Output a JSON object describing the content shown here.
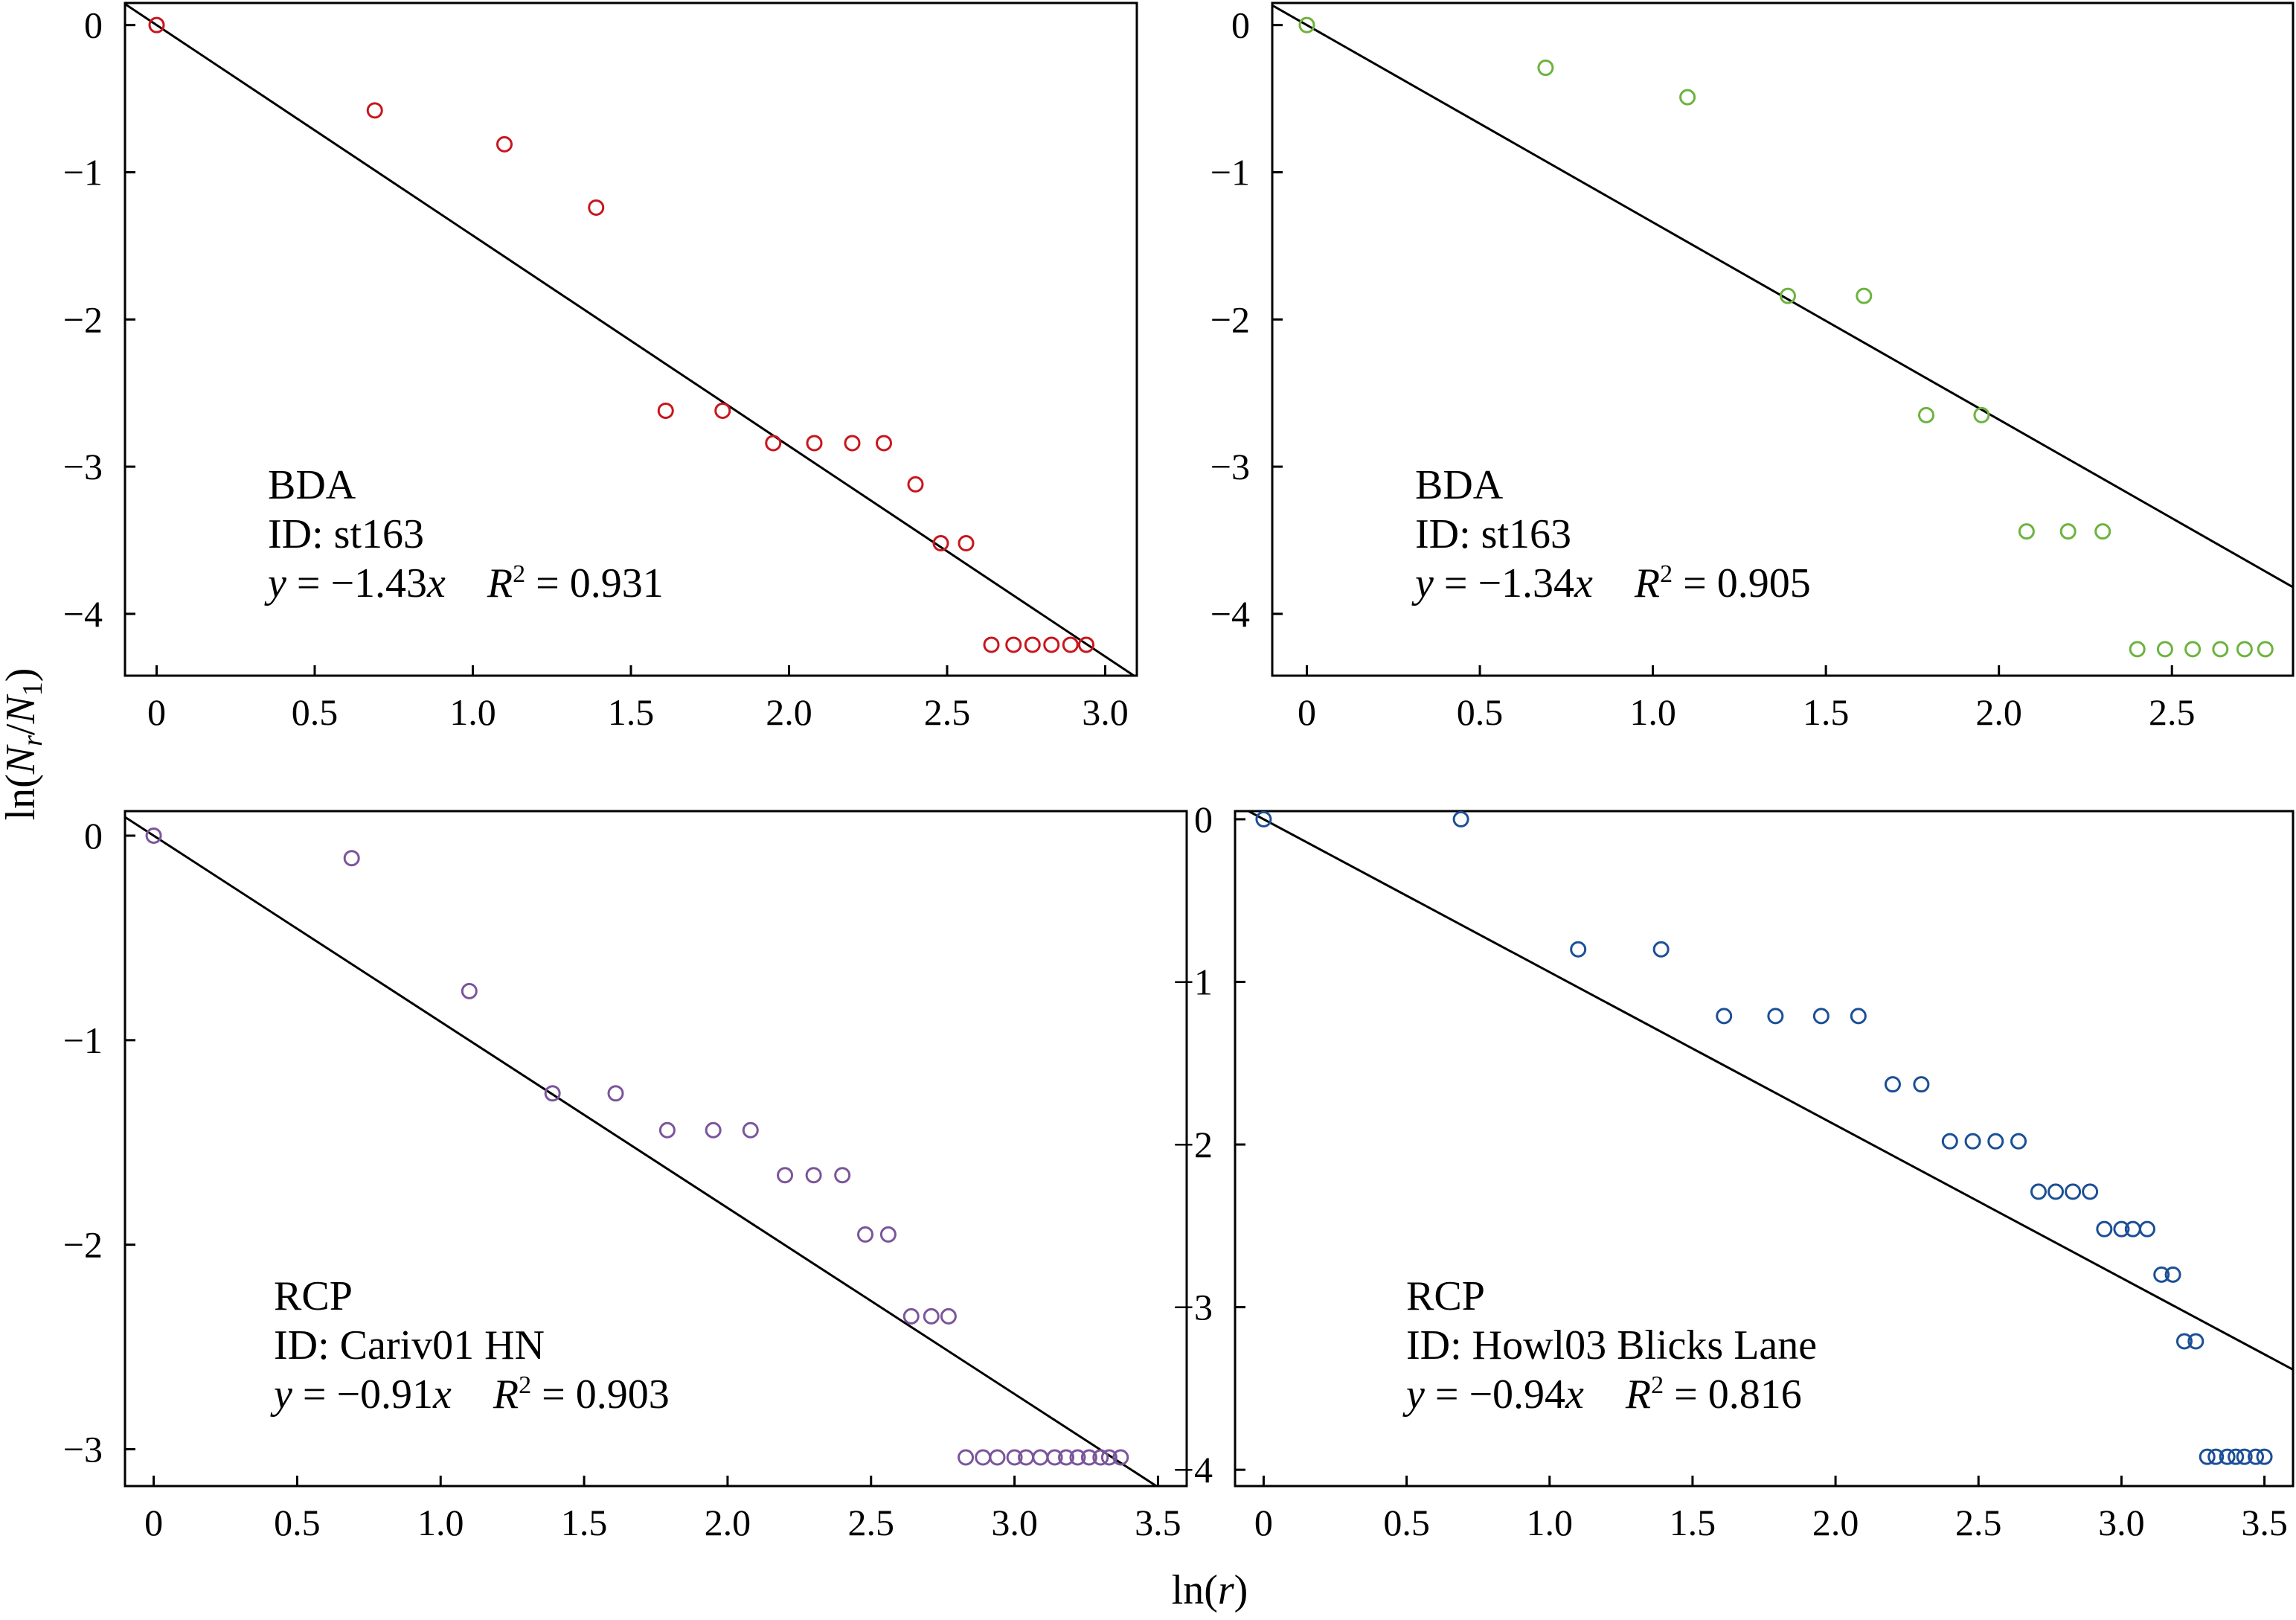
{
  "figure": {
    "xlabel": "ln(r)",
    "ylabel": "ln(N_r/N_1)"
  },
  "chart_data": [
    {
      "type": "scatter",
      "color": "#c8161d",
      "label_lines": [
        "BDA",
        "ID: st163"
      ],
      "equation": {
        "slope": "−1.43",
        "r2": "0.931"
      },
      "fit": {
        "slope": -1.43,
        "intercept": 0
      },
      "xlim": [
        -0.1,
        3.1
      ],
      "ylim": [
        -4.42,
        0.15
      ],
      "xticks": [
        0,
        0.5,
        1.0,
        1.5,
        2.0,
        2.5,
        3.0
      ],
      "xtick_labels": [
        "0",
        "0.5",
        "1.0",
        "1.5",
        "2.0",
        "2.5",
        "3.0"
      ],
      "yticks": [
        0,
        -1,
        -2,
        -3,
        -4
      ],
      "ytick_labels": [
        "0",
        "−1",
        "−2",
        "−3",
        "−4"
      ],
      "x": [
        0,
        0.69,
        1.1,
        1.39,
        1.61,
        1.79,
        1.95,
        2.08,
        2.2,
        2.3,
        2.4,
        2.48,
        2.56,
        2.64,
        2.71,
        2.77,
        2.83,
        2.89,
        2.94
      ],
      "y": [
        0,
        -0.58,
        -0.81,
        -1.24,
        -2.62,
        -2.62,
        -2.84,
        -2.84,
        -2.84,
        -2.84,
        -3.12,
        -3.52,
        -3.52,
        -4.21,
        -4.21,
        -4.21,
        -4.21,
        -4.21,
        -4.21
      ]
    },
    {
      "type": "scatter",
      "color": "#6cb33f",
      "label_lines": [
        "BDA",
        "ID: st163"
      ],
      "equation": {
        "slope": "−1.34",
        "r2": "0.905"
      },
      "fit": {
        "slope": -1.34,
        "intercept": 0
      },
      "xlim": [
        -0.1,
        2.85
      ],
      "ylim": [
        -4.42,
        0.15
      ],
      "xticks": [
        0,
        0.5,
        1.0,
        1.5,
        2.0,
        2.5
      ],
      "xtick_labels": [
        "0",
        "0.5",
        "1.0",
        "1.5",
        "2.0",
        "2.5"
      ],
      "yticks": [
        0,
        -1,
        -2,
        -3,
        -4
      ],
      "ytick_labels": [
        "0",
        "−1",
        "−2",
        "−3",
        "−4"
      ],
      "x": [
        0,
        0.69,
        1.1,
        1.39,
        1.61,
        1.79,
        1.95,
        2.08,
        2.2,
        2.3,
        2.4,
        2.48,
        2.56,
        2.64,
        2.71,
        2.77
      ],
      "y": [
        0,
        -0.29,
        -0.49,
        -1.84,
        -1.84,
        -2.65,
        -2.65,
        -3.44,
        -3.44,
        -3.44,
        -4.24,
        -4.24,
        -4.24,
        -4.24,
        -4.24,
        -4.24
      ]
    },
    {
      "type": "scatter",
      "color": "#7b559b",
      "label_lines": [
        "RCP",
        "ID: Cariv01 HN"
      ],
      "equation": {
        "slope": "−0.91",
        "r2": "0.903"
      },
      "fit": {
        "slope": -0.91,
        "intercept": 0
      },
      "xlim": [
        -0.1,
        3.6
      ],
      "ylim": [
        -3.18,
        0.12
      ],
      "xticks": [
        0,
        0.5,
        1.0,
        1.5,
        2.0,
        2.5,
        3.0,
        3.5
      ],
      "xtick_labels": [
        "0",
        "0.5",
        "1.0",
        "1.5",
        "2.0",
        "2.5",
        "3.0",
        "3.5"
      ],
      "yticks": [
        0,
        -1,
        -2,
        -3
      ],
      "ytick_labels": [
        "0",
        "−1",
        "−2",
        "−3"
      ],
      "x": [
        0,
        0.69,
        1.1,
        1.39,
        1.61,
        1.79,
        1.95,
        2.08,
        2.2,
        2.3,
        2.4,
        2.48,
        2.56,
        2.64,
        2.71,
        2.77,
        2.83,
        2.89,
        2.94,
        3.0,
        3.04,
        3.09,
        3.14,
        3.18,
        3.22,
        3.26,
        3.3,
        3.33,
        3.37
      ],
      "y": [
        0,
        -0.11,
        -0.76,
        -1.26,
        -1.26,
        -1.44,
        -1.44,
        -1.44,
        -1.66,
        -1.66,
        -1.66,
        -1.95,
        -1.95,
        -2.35,
        -2.35,
        -2.35,
        -3.04,
        -3.04,
        -3.04,
        -3.04,
        -3.04,
        -3.04,
        -3.04,
        -3.04,
        -3.04,
        -3.04,
        -3.04,
        -3.04,
        -3.04
      ]
    },
    {
      "type": "scatter",
      "color": "#1b4f96",
      "label_lines": [
        "RCP",
        "ID: Howl03 Blicks Lane"
      ],
      "equation": {
        "slope": "−0.94",
        "r2": "0.816"
      },
      "fit": {
        "slope": -0.94,
        "intercept": 0
      },
      "xlim": [
        -0.1,
        3.6
      ],
      "ylim": [
        -4.1,
        0.05
      ],
      "xticks": [
        0,
        0.5,
        1.0,
        1.5,
        2.0,
        2.5,
        3.0,
        3.5
      ],
      "xtick_labels": [
        "0",
        "0.5",
        "1.0",
        "1.5",
        "2.0",
        "2.5",
        "3.0",
        "3.5"
      ],
      "yticks": [
        0,
        -1,
        -2,
        -3,
        -4
      ],
      "ytick_labels": [
        "0",
        "−1",
        "−2",
        "−3",
        "−4"
      ],
      "x": [
        0,
        0.69,
        1.1,
        1.39,
        1.61,
        1.79,
        1.95,
        2.08,
        2.2,
        2.3,
        2.4,
        2.48,
        2.56,
        2.64,
        2.71,
        2.77,
        2.83,
        2.89,
        2.94,
        3.0,
        3.04,
        3.09,
        3.14,
        3.18,
        3.22,
        3.26,
        3.3,
        3.33,
        3.37,
        3.4,
        3.43,
        3.47,
        3.5
      ],
      "y": [
        0,
        0,
        -0.8,
        -0.8,
        -1.21,
        -1.21,
        -1.21,
        -1.21,
        -1.63,
        -1.63,
        -1.98,
        -1.98,
        -1.98,
        -1.98,
        -2.29,
        -2.29,
        -2.29,
        -2.29,
        -2.52,
        -2.52,
        -2.52,
        -2.52,
        -2.8,
        -2.8,
        -3.21,
        -3.21,
        -3.92,
        -3.92,
        -3.92,
        -3.92,
        -3.92,
        -3.92,
        -3.92
      ]
    }
  ]
}
